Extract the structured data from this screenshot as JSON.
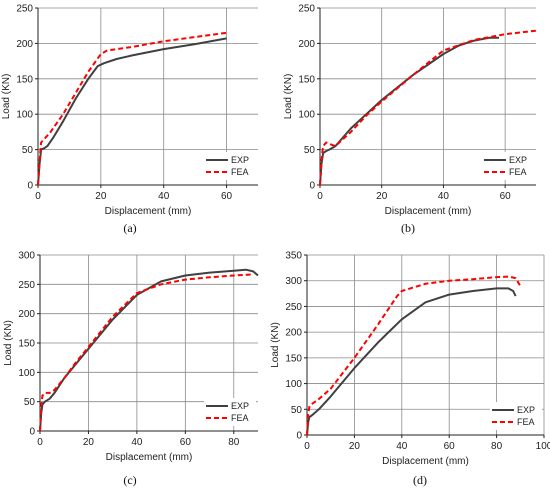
{
  "chart_data": [
    {
      "type": "line",
      "panel_label": "(a)",
      "xlabel": "Displacement (mm)",
      "ylabel": "Load (KN)",
      "xlim": [
        0,
        70
      ],
      "ylim": [
        0,
        250
      ],
      "xticks": [
        0,
        20,
        40,
        60
      ],
      "yticks": [
        0,
        50,
        100,
        150,
        200,
        250
      ],
      "grid": true,
      "legend_position": "bottom-right",
      "series": [
        {
          "name": "EXP",
          "color": "#404040",
          "dash": "solid",
          "x": [
            0,
            0.5,
            1,
            2,
            3,
            5,
            8,
            12,
            16,
            19,
            21,
            25,
            30,
            40,
            50,
            60
          ],
          "y": [
            0,
            30,
            50,
            52,
            55,
            68,
            90,
            122,
            150,
            168,
            172,
            178,
            183,
            192,
            199,
            207
          ]
        },
        {
          "name": "FEA",
          "color": "#ff0000",
          "dash": "dashed",
          "x": [
            0,
            0.5,
            1,
            2,
            4,
            8,
            12,
            16,
            20,
            22,
            30,
            40,
            50,
            60
          ],
          "y": [
            0,
            35,
            60,
            65,
            75,
            100,
            130,
            160,
            185,
            190,
            195,
            203,
            209,
            215
          ]
        }
      ]
    },
    {
      "type": "line",
      "panel_label": "(b)",
      "xlabel": "Displacement (mm)",
      "ylabel": "Load (KN)",
      "xlim": [
        0,
        70
      ],
      "ylim": [
        0,
        250
      ],
      "xticks": [
        0,
        20,
        40,
        60
      ],
      "yticks": [
        0,
        50,
        100,
        150,
        200,
        250
      ],
      "grid": true,
      "legend_position": "bottom-right",
      "series": [
        {
          "name": "EXP",
          "color": "#404040",
          "dash": "solid",
          "x": [
            0,
            0.5,
            1,
            2,
            3,
            5,
            10,
            15,
            20,
            30,
            40,
            45,
            50,
            55,
            58
          ],
          "y": [
            0,
            30,
            45,
            48,
            50,
            55,
            80,
            100,
            120,
            155,
            185,
            197,
            204,
            208,
            208
          ]
        },
        {
          "name": "FEA",
          "color": "#ff0000",
          "dash": "dashed",
          "x": [
            0,
            0.5,
            1,
            2,
            3,
            5,
            10,
            15,
            20,
            30,
            40,
            50,
            60,
            70
          ],
          "y": [
            0,
            35,
            55,
            60,
            58,
            55,
            75,
            98,
            118,
            155,
            190,
            205,
            213,
            218
          ]
        }
      ]
    },
    {
      "type": "line",
      "panel_label": "(c)",
      "xlabel": "Displacement (mm)",
      "ylabel": "Load (KN)",
      "xlim": [
        0,
        90
      ],
      "ylim": [
        0,
        300
      ],
      "xticks": [
        0,
        20,
        40,
        60,
        80
      ],
      "yticks": [
        0,
        50,
        100,
        150,
        200,
        250,
        300
      ],
      "grid": true,
      "legend_position": "bottom-right",
      "series": [
        {
          "name": "EXP",
          "color": "#404040",
          "dash": "solid",
          "x": [
            0,
            0.5,
            1,
            2,
            4,
            6,
            10,
            15,
            20,
            30,
            40,
            50,
            60,
            70,
            80,
            85,
            88,
            90
          ],
          "y": [
            0,
            30,
            45,
            50,
            55,
            65,
            90,
            115,
            140,
            190,
            232,
            255,
            265,
            270,
            273,
            275,
            272,
            265
          ]
        },
        {
          "name": "FEA",
          "color": "#ff0000",
          "dash": "dashed",
          "x": [
            0,
            0.5,
            1,
            2,
            4,
            6,
            10,
            15,
            20,
            30,
            40,
            50,
            60,
            70,
            80,
            88
          ],
          "y": [
            0,
            40,
            60,
            65,
            65,
            70,
            90,
            118,
            143,
            195,
            235,
            250,
            258,
            262,
            265,
            267
          ]
        }
      ]
    },
    {
      "type": "line",
      "panel_label": "(d)",
      "xlabel": "Displacement (mm)",
      "ylabel": "Load (KN)",
      "xlim": [
        0,
        100
      ],
      "ylim": [
        0,
        350
      ],
      "xticks": [
        0,
        20,
        40,
        60,
        80,
        100
      ],
      "yticks": [
        0,
        50,
        100,
        150,
        200,
        250,
        300,
        350
      ],
      "grid": true,
      "legend_position": "bottom-right",
      "series": [
        {
          "name": "EXP",
          "color": "#404040",
          "dash": "solid",
          "x": [
            0,
            0.5,
            1,
            2,
            5,
            10,
            20,
            30,
            40,
            50,
            60,
            70,
            80,
            85,
            87,
            88
          ],
          "y": [
            0,
            25,
            35,
            38,
            50,
            75,
            130,
            180,
            225,
            258,
            273,
            280,
            285,
            285,
            280,
            270
          ]
        },
        {
          "name": "FEA",
          "color": "#ff0000",
          "dash": "dashed",
          "x": [
            0,
            0.5,
            1,
            2,
            5,
            10,
            20,
            30,
            38,
            40,
            50,
            60,
            70,
            80,
            85,
            88,
            90
          ],
          "y": [
            0,
            40,
            55,
            60,
            70,
            90,
            150,
            215,
            270,
            280,
            294,
            300,
            303,
            307,
            308,
            305,
            290
          ]
        }
      ]
    }
  ]
}
